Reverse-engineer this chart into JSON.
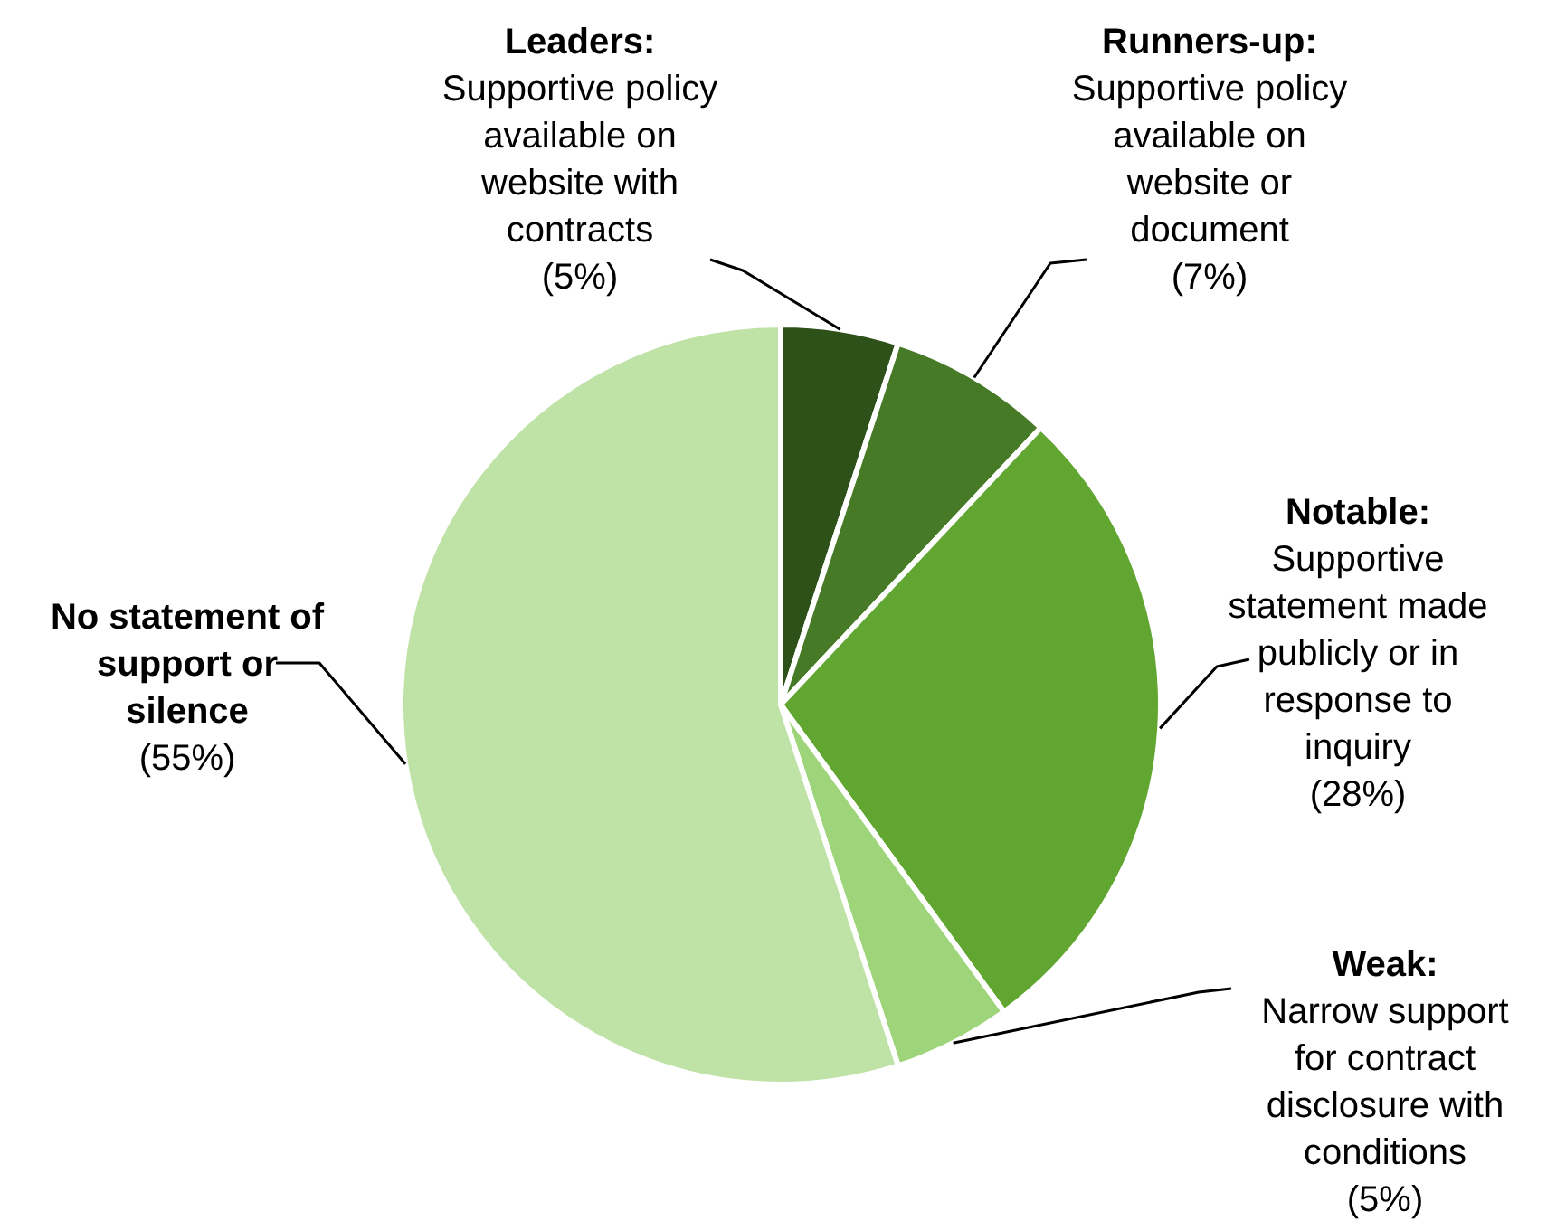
{
  "chart_data": {
    "type": "pie",
    "categories": [
      "Leaders:\nSupportive policy\navailable on\nwebsite with\ncontracts",
      "Runners-up:\nSupportive policy\navailable on\nwebsite or\ndocument",
      "Notable:\nSupportive\nstatement made\npublicly or in\nresponse to\ninquiry",
      "Weak:\nNarrow support\nfor contract\ndisclosure with\nconditions",
      "No statement of\nsupport or\nsilence"
    ],
    "values": [
      5,
      7,
      28,
      5,
      55
    ],
    "value_labels": [
      "(5%)",
      "(7%)",
      "(28%)",
      "(5%)",
      "(55%)"
    ],
    "colors": [
      "#2e5019",
      "#477a26",
      "#62a632",
      "#9ed57b",
      "#bfe2a6"
    ]
  }
}
